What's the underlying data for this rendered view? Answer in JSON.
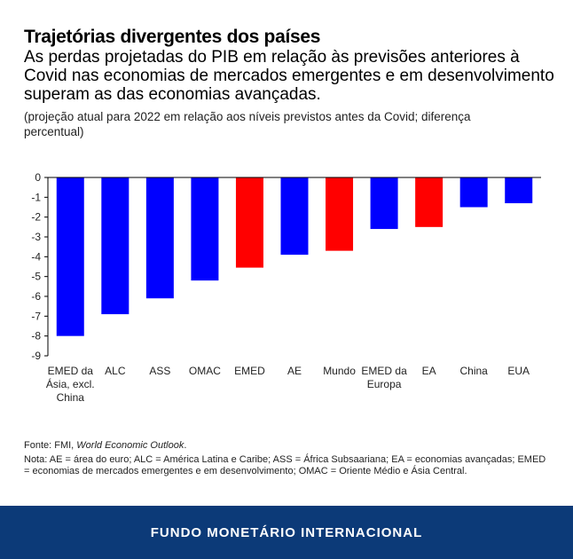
{
  "chart_data": {
    "type": "bar",
    "title": "Trajetórias divergentes dos países",
    "subtitle": "As perdas projetadas do PIB em relação às previsões anteriores à Covid nas economias de mercados emergentes e em desenvolvimento superam as das economias avançadas.",
    "unit_note": "(projeção atual para 2022 em relação aos níveis previstos antes da Covid; diferença percentual)",
    "categories": [
      "EMED da Ásia, excl. China",
      "ALC",
      "ASS",
      "OMAC",
      "EMED",
      "AE",
      "Mundo",
      "EMED da Europa",
      "EA",
      "China",
      "EUA"
    ],
    "values": [
      -8.0,
      -6.9,
      -6.1,
      -5.2,
      -4.55,
      -3.9,
      -3.7,
      -2.6,
      -2.5,
      -1.5,
      -1.3
    ],
    "bar_colors": [
      "#0000ff",
      "#0000ff",
      "#0000ff",
      "#0000ff",
      "#ff0000",
      "#0000ff",
      "#ff0000",
      "#0000ff",
      "#ff0000",
      "#0000ff",
      "#0000ff"
    ],
    "yticks": [
      "0",
      "-1",
      "-2",
      "-3",
      "-4",
      "-5",
      "-6",
      "-7",
      "-8",
      "-9"
    ],
    "ylim": [
      -9,
      0
    ],
    "grid": false
  },
  "source": {
    "prefix": "Fonte: FMI, ",
    "title": "World Economic Outlook",
    "suffix": "."
  },
  "note": "Nota: AE = área do euro; ALC = América Latina e Caribe; ASS = África Subsaariana; EA = economias avançadas; EMED = economias de mercados emergentes e em desenvolvimento; OMAC = Oriente Médio e Ásia Central.",
  "footer": "FUNDO MONETÁRIO INTERNACIONAL",
  "colors": {
    "footer_bg": "#0c3a78",
    "blue": "#0000ff",
    "red": "#ff0000"
  }
}
